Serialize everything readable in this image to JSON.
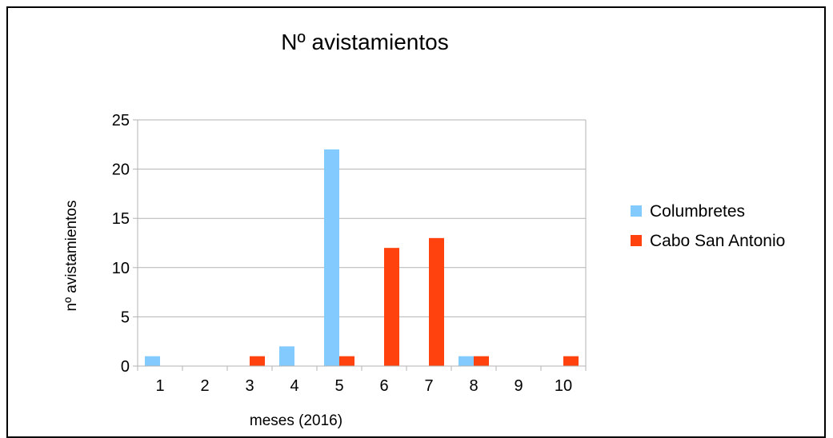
{
  "chart_data": {
    "type": "bar",
    "title": "Nº avistamientos",
    "xlabel": "meses (2016)",
    "ylabel": "nº avistamientos",
    "categories": [
      "1",
      "2",
      "3",
      "4",
      "5",
      "6",
      "7",
      "8",
      "9",
      "10"
    ],
    "series": [
      {
        "name": "Columbretes",
        "color": "#83caff",
        "values": [
          1,
          0,
          0,
          2,
          22,
          0,
          0,
          1,
          0,
          0
        ]
      },
      {
        "name": "Cabo San Antonio",
        "color": "#ff420e",
        "values": [
          0,
          0,
          1,
          0,
          1,
          12,
          13,
          1,
          0,
          1
        ]
      }
    ],
    "ylim": [
      0,
      25
    ],
    "yticks": [
      "0",
      "5",
      "10",
      "15",
      "20",
      "25"
    ],
    "grid": true,
    "legend_position": "right"
  }
}
